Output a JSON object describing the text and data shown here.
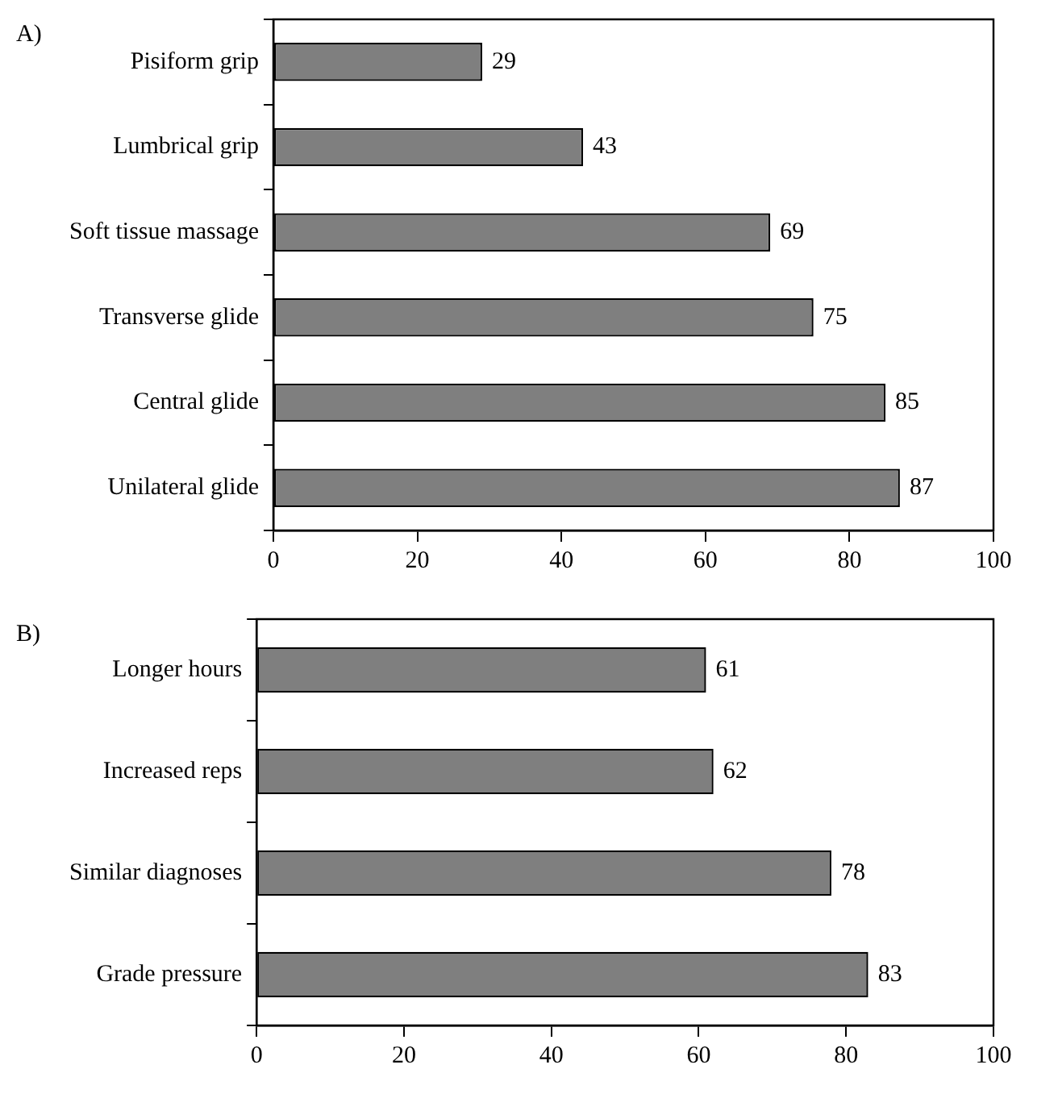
{
  "chart_data": [
    {
      "type": "bar",
      "orientation": "horizontal",
      "title": "A)",
      "categories": [
        "Pisiform grip",
        "Lumbrical grip",
        "Soft tissue massage",
        "Transverse glide",
        "Central glide",
        "Unilateral glide"
      ],
      "values": [
        29,
        43,
        69,
        75,
        85,
        87
      ],
      "color": "#7f7f7f",
      "xlim": [
        0,
        100
      ],
      "xticks": [
        0,
        20,
        40,
        60,
        80,
        100
      ],
      "data_labels": true,
      "grid": false,
      "legend": false
    },
    {
      "type": "bar",
      "orientation": "horizontal",
      "title": "B)",
      "categories": [
        "Longer hours",
        "Increased reps",
        "Similar diagnoses",
        "Grade pressure"
      ],
      "values": [
        61,
        62,
        78,
        83
      ],
      "color": "#7f7f7f",
      "xlim": [
        0,
        100
      ],
      "xticks": [
        0,
        20,
        40,
        60,
        80,
        100
      ],
      "data_labels": true,
      "grid": false,
      "legend": false
    }
  ]
}
